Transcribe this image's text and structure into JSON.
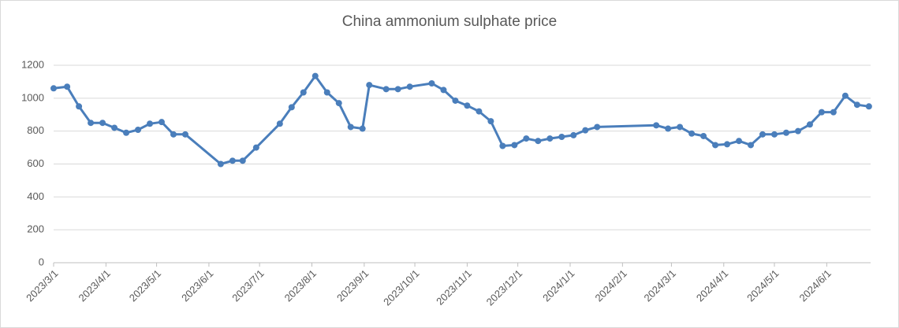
{
  "chart_data": {
    "type": "line",
    "title": "China ammonium sulphate price",
    "x": [
      "2023/3/1",
      "2023/3/9",
      "2023/3/16",
      "2023/3/23",
      "2023/3/30",
      "2023/4/6",
      "2023/4/13",
      "2023/4/20",
      "2023/4/27",
      "2023/5/4",
      "2023/5/11",
      "2023/5/18",
      "2023/6/8",
      "2023/6/15",
      "2023/6/21",
      "2023/6/29",
      "2023/7/13",
      "2023/7/20",
      "2023/7/27",
      "2023/8/3",
      "2023/8/10",
      "2023/8/17",
      "2023/8/24",
      "2023/8/31",
      "2023/9/4",
      "2023/9/14",
      "2023/9/21",
      "2023/9/28",
      "2023/10/11",
      "2023/10/18",
      "2023/10/25",
      "2023/11/1",
      "2023/11/8",
      "2023/11/15",
      "2023/11/22",
      "2023/11/29",
      "2023/12/6",
      "2023/12/13",
      "2023/12/20",
      "2023/12/27",
      "2024/1/3",
      "2024/1/10",
      "2024/1/17",
      "2024/2/21",
      "2024/2/28",
      "2024/3/6",
      "2024/3/13",
      "2024/3/20",
      "2024/3/27",
      "2024/4/3",
      "2024/4/10",
      "2024/4/17",
      "2024/4/24",
      "2024/5/1",
      "2024/5/8",
      "2024/5/15",
      "2024/5/22",
      "2024/5/29",
      "2024/6/5",
      "2024/6/12",
      "2024/6/19",
      "2024/6/26"
    ],
    "series": [
      {
        "name": "China ammonium sulphate price",
        "color": "#4a7ebb",
        "values": [
          1060,
          1070,
          950,
          850,
          850,
          820,
          790,
          808,
          845,
          855,
          780,
          780,
          600,
          620,
          620,
          700,
          845,
          945,
          1035,
          1135,
          1035,
          970,
          825,
          815,
          1080,
          1055,
          1055,
          1070,
          1090,
          1050,
          985,
          955,
          920,
          860,
          710,
          715,
          755,
          740,
          755,
          765,
          775,
          805,
          825,
          835,
          815,
          825,
          785,
          770,
          715,
          720,
          740,
          715,
          780,
          780,
          790,
          800,
          840,
          915,
          915,
          1015,
          960,
          950
        ]
      }
    ],
    "xlim": [
      "2023/3/1",
      "2024/6/27"
    ],
    "xticks": [
      "2023/3/1",
      "2023/4/1",
      "2023/5/1",
      "2023/6/1",
      "2023/7/1",
      "2023/8/1",
      "2023/9/1",
      "2023/10/1",
      "2023/11/1",
      "2023/12/1",
      "2024/1/1",
      "2024/2/1",
      "2024/3/1",
      "2024/4/1",
      "2024/5/1",
      "2024/6/1"
    ],
    "ylim": [
      0,
      1200
    ],
    "yticks": [
      0,
      200,
      400,
      600,
      800,
      1000,
      1200
    ],
    "grid": true
  }
}
